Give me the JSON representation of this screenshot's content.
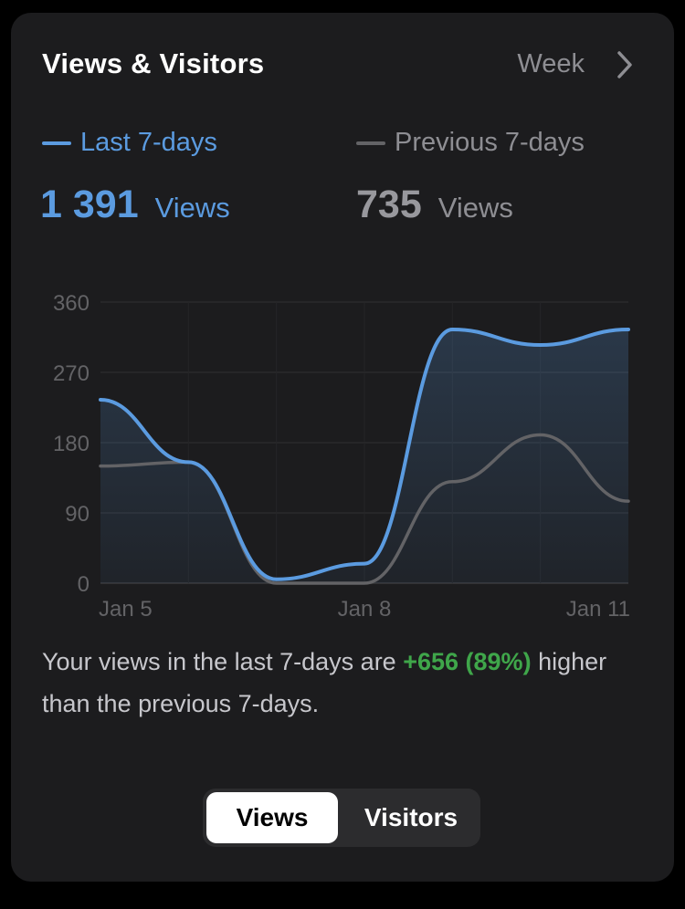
{
  "header": {
    "title": "Views & Visitors",
    "period": "Week"
  },
  "legend": {
    "current": "Last 7-days",
    "previous": "Previous 7-days"
  },
  "totals": {
    "current": {
      "value": "1 391",
      "unit": "Views"
    },
    "previous": {
      "value": "735",
      "unit": "Views"
    }
  },
  "summary": {
    "prefix": "Your views in the last 7-days are ",
    "delta": "+656 (89%)",
    "suffix": " higher than the previous 7-days."
  },
  "segmented": {
    "views": "Views",
    "visitors": "Visitors"
  },
  "colors": {
    "current": "#5b9be0",
    "previous": "#636366",
    "positive": "#3fa64a"
  },
  "chart_data": {
    "type": "line",
    "x": [
      "Jan 5",
      "Jan 6",
      "Jan 7",
      "Jan 8",
      "Jan 9",
      "Jan 10",
      "Jan 11"
    ],
    "xtick_labels": [
      "Jan 5",
      "Jan 8",
      "Jan 11"
    ],
    "ylim": [
      0,
      360
    ],
    "yticks": [
      0,
      90,
      180,
      270,
      360
    ],
    "grid": true,
    "series": [
      {
        "name": "Last 7-days",
        "values": [
          235,
          155,
          5,
          25,
          325,
          305,
          325
        ],
        "fill": true
      },
      {
        "name": "Previous 7-days",
        "values": [
          150,
          155,
          0,
          0,
          130,
          190,
          105
        ],
        "fill": false
      }
    ]
  }
}
